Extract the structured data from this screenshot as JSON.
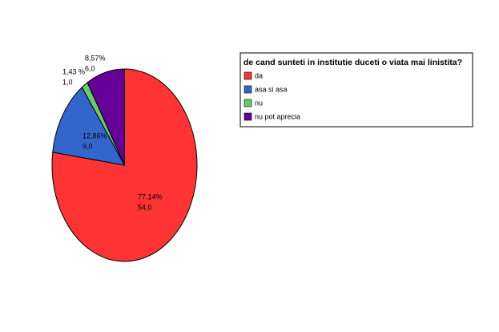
{
  "chart_data": {
    "type": "pie",
    "legend_title": "de cand sunteti in institutie duceti o viata mai linistita?",
    "categories": [
      "da",
      "asa si asa",
      "nu",
      "nu pot aprecia"
    ],
    "values": [
      54,
      9,
      1,
      6
    ],
    "value_labels": [
      "54,0",
      "9,0",
      "1,0",
      "6,0"
    ],
    "percents": [
      77.14,
      12.86,
      1.43,
      8.57
    ],
    "percent_labels": [
      "77,14%",
      "12,86%",
      "1,43 %",
      "8,57%"
    ],
    "colors": [
      "#ff3333",
      "#3366cc",
      "#66cc66",
      "#660099"
    ],
    "legend": "right"
  }
}
